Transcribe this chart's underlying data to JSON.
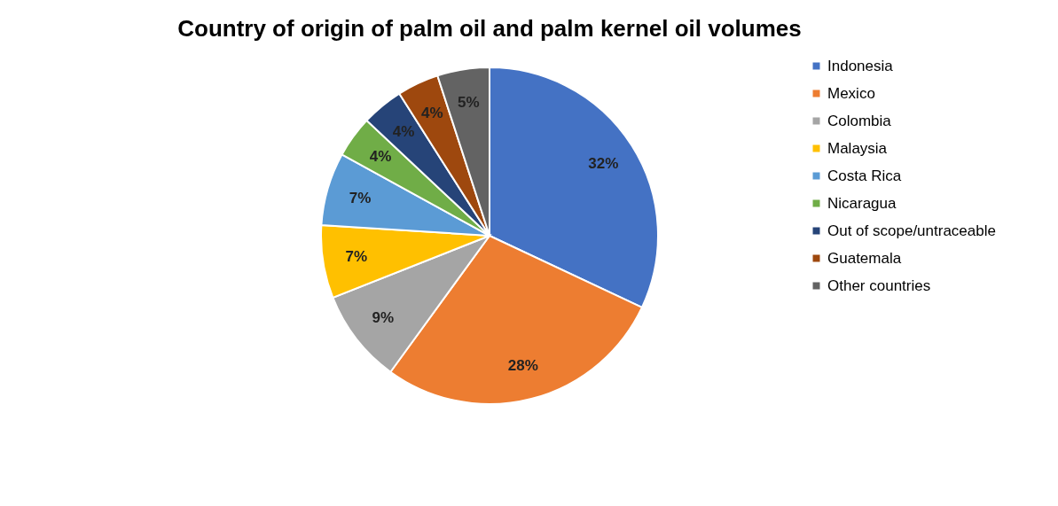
{
  "chart_data": {
    "type": "pie",
    "title": "Country of origin of palm oil and palm kernel oil volumes",
    "categories": [
      "Indonesia",
      "Mexico",
      "Colombia",
      "Malaysia",
      "Costa Rica",
      "Nicaragua",
      "Out of scope/untraceable",
      "Guatemala",
      "Other countries"
    ],
    "values": [
      32,
      28,
      9,
      7,
      7,
      4,
      4,
      4,
      5
    ],
    "colors": [
      "#4472c4",
      "#ed7d31",
      "#a5a5a5",
      "#ffc000",
      "#5b9bd5",
      "#70ad47",
      "#264478",
      "#9e480e",
      "#636363"
    ],
    "value_labels": [
      "32%",
      "28%",
      "9%",
      "7%",
      "7%",
      "4%",
      "4%",
      "4%",
      "5%"
    ],
    "legend": "right"
  }
}
